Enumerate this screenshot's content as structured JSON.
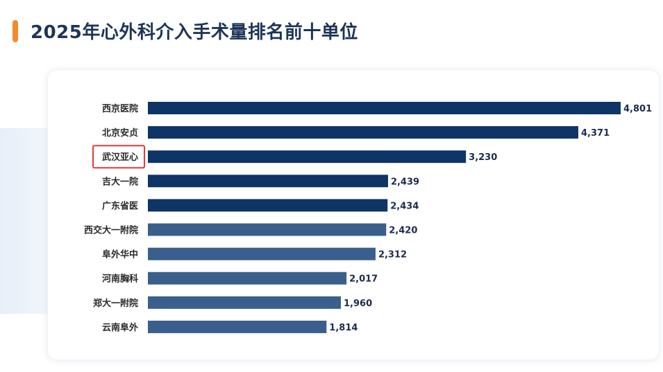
{
  "title": "2025年心外科介入手术量排名前十单位",
  "colors": {
    "accent": "#f28a30",
    "bar_dark": "#0f3466",
    "bar_light": "#3a5f8c",
    "highlight_box": "#e53935"
  },
  "chart_data": {
    "type": "bar",
    "orientation": "horizontal",
    "title": "",
    "xlabel": "",
    "ylabel": "",
    "grid": false,
    "xlim": [
      0,
      4801
    ],
    "categories": [
      "西京医院",
      "北京安贞",
      "武汉亚心",
      "吉大一院",
      "广东省医",
      "西交大一附院",
      "阜外华中",
      "河南胸科",
      "郑大一附院",
      "云南阜外"
    ],
    "values": [
      4801,
      4371,
      3230,
      2439,
      2434,
      2420,
      2312,
      2017,
      1960,
      1814
    ],
    "value_labels": [
      "4,801",
      "4,371",
      "3,230",
      "2,439",
      "2,434",
      "2,420",
      "2,312",
      "2,017",
      "1,960",
      "1,814"
    ],
    "bar_color_groups": [
      "dark",
      "dark",
      "dark",
      "dark",
      "dark",
      "light",
      "light",
      "light",
      "light",
      "light"
    ],
    "highlighted_category": "武汉亚心"
  }
}
